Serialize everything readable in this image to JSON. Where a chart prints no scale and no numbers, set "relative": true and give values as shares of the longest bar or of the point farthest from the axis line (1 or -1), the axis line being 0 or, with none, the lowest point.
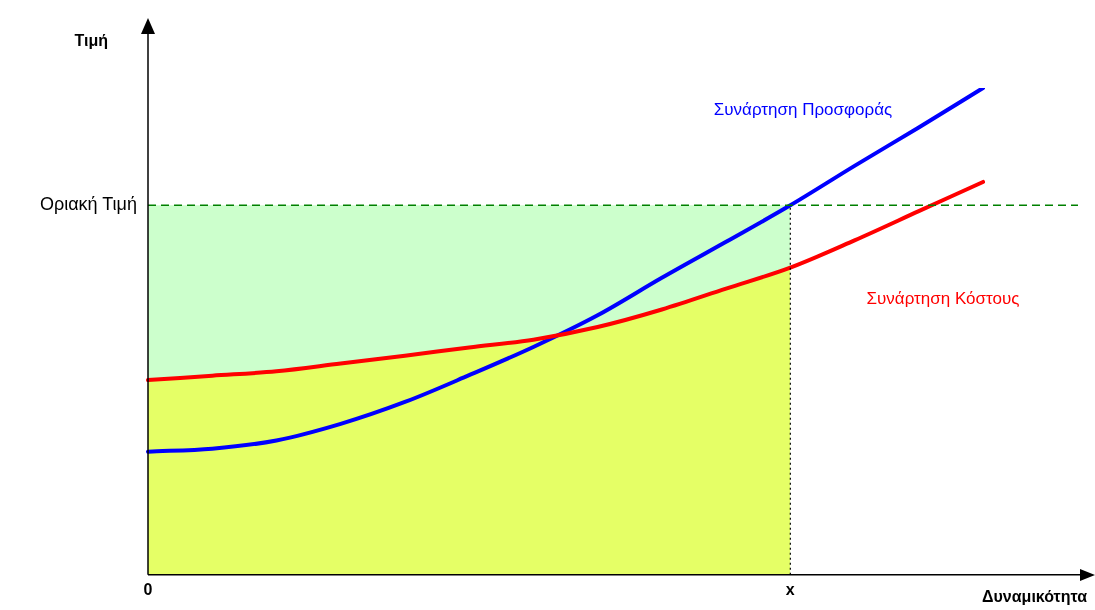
{
  "chart_data": {
    "type": "line",
    "relative": true,
    "xlabel": "Δυναμικότητα",
    "ylabel": "Τιμή",
    "marker": "none",
    "categories": [
      "0",
      null,
      null,
      null,
      null,
      null,
      null,
      null,
      null,
      null,
      "x",
      null,
      null,
      null
    ],
    "series": [
      {
        "type": "area",
        "color": "#ccffcc",
        "values": [
          0.759,
          0.759,
          0.759,
          0.759,
          0.759,
          0.759,
          0.759,
          0.759,
          0.759,
          0.759,
          0.759,
          null,
          null,
          null
        ]
      },
      {
        "type": "area",
        "color": "#e5ff66",
        "values": [
          0.4,
          0.409,
          0.418,
          0.434,
          0.45,
          0.467,
          0.483,
          0.509,
          0.545,
          0.588,
          0.631,
          null,
          null,
          null
        ]
      },
      {
        "name": "Συνάρτηση Προσφοράς",
        "color": "#0000ff",
        "values": [
          0.253,
          0.259,
          0.276,
          0.31,
          0.355,
          0.41,
          0.468,
          0.533,
          0.61,
          0.684,
          0.759,
          0.84,
          0.919,
          1
        ]
      },
      {
        "name": "Συνάρτηση Κόστους",
        "color": "#ff0000",
        "values": [
          0.4,
          0.409,
          0.418,
          0.434,
          0.45,
          0.467,
          0.483,
          0.509,
          0.545,
          0.588,
          0.631,
          0.687,
          0.747,
          0.807
        ]
      }
    ],
    "ref_lines": [
      {
        "axis": "y",
        "value": 0.759,
        "label": "Οριακή Τιμή",
        "color": "#008000",
        "line_style": "dashed"
      },
      {
        "axis": "x",
        "value": "x",
        "color": "#000000",
        "line_style": "dotted"
      }
    ]
  }
}
